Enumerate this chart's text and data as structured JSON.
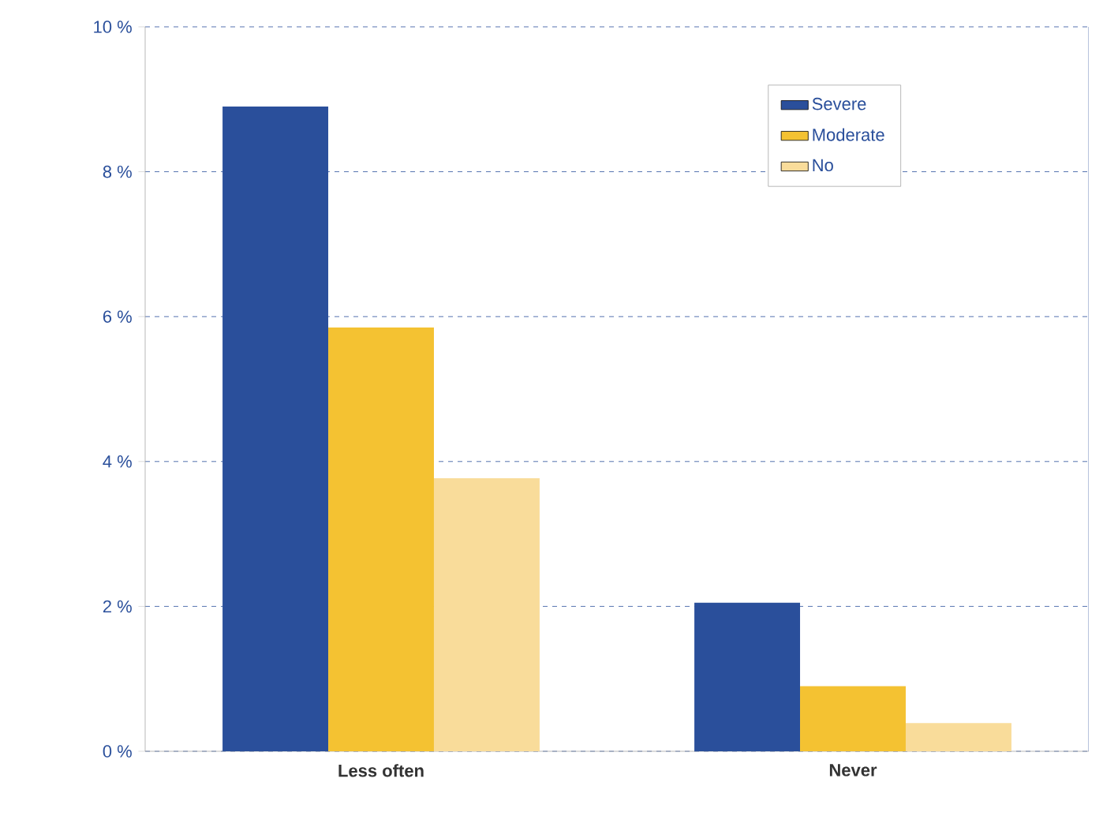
{
  "chart_data": {
    "type": "bar",
    "categories": [
      "Less often",
      "Never"
    ],
    "series": [
      {
        "name": "Severe",
        "color": "#2a4f9b",
        "values": [
          8.9,
          2.05
        ]
      },
      {
        "name": "Moderate",
        "color": "#f4c232",
        "values": [
          5.85,
          0.9
        ]
      },
      {
        "name": "No",
        "color": "#f9dc9a",
        "values": [
          3.77,
          0.39
        ]
      }
    ],
    "ylim": [
      0,
      10
    ],
    "yticks": [
      {
        "value": 0,
        "label": "0 %"
      },
      {
        "value": 2,
        "label": "2 %"
      },
      {
        "value": 4,
        "label": "4 %"
      },
      {
        "value": 6,
        "label": "6 %"
      },
      {
        "value": 8,
        "label": "8 %"
      },
      {
        "value": 10,
        "label": "10 %"
      }
    ],
    "grid": "y",
    "legend": "top right"
  }
}
